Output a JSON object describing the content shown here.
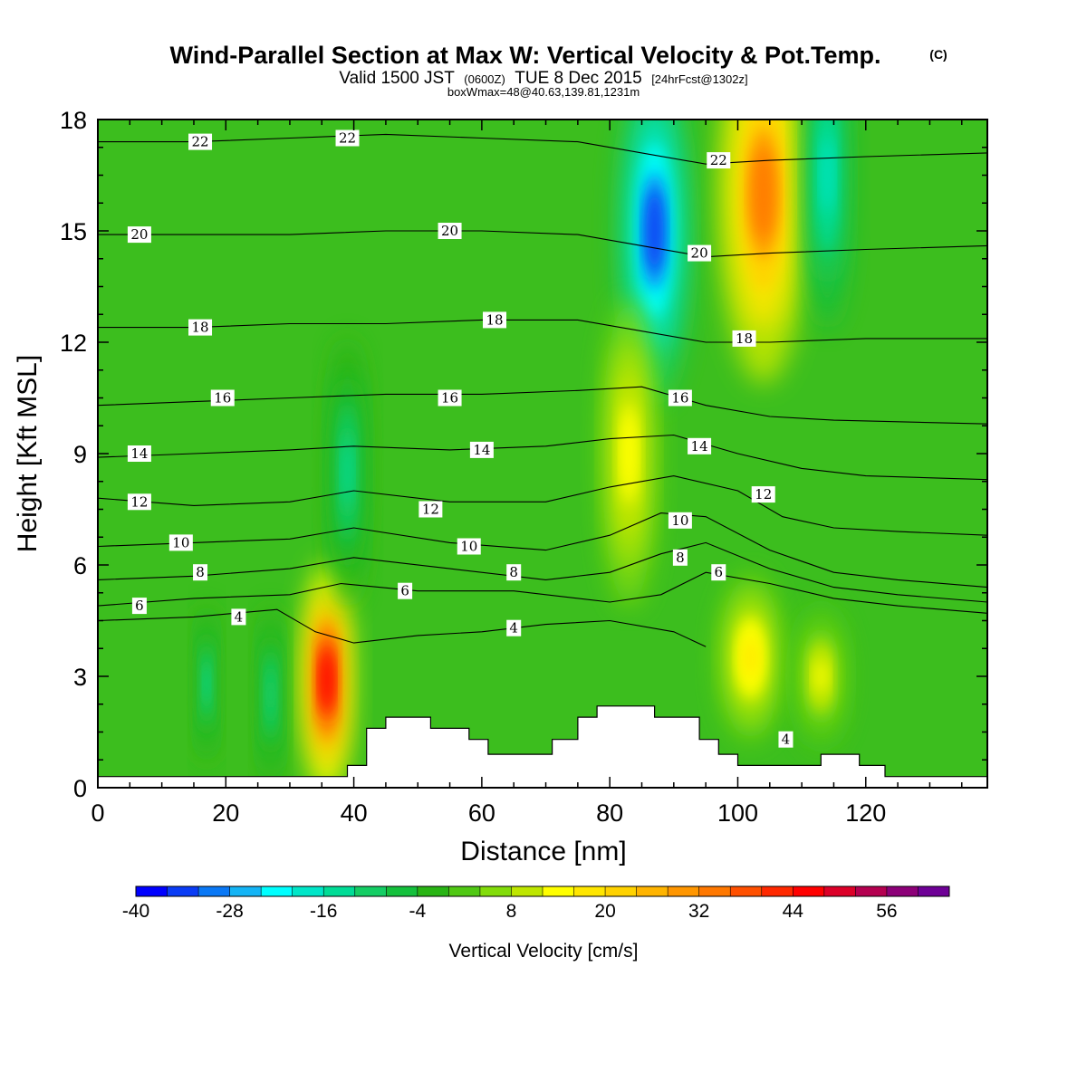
{
  "header": {
    "title": "Wind-Parallel Section at Max W: Vertical Velocity & Pot.Temp.",
    "title_mark": "(C)",
    "valid_prefix": "Valid 1500 JST",
    "valid_utc": "(0600Z)",
    "valid_date": "TUE 8 Dec 2015",
    "forecast": "[24hrFcst@1302z]",
    "box_info": "boxWmax=48@40.63,139.81,1231m"
  },
  "chart_data": {
    "type": "heatmap",
    "title": "Wind-Parallel Section at Max W: Vertical Velocity & Pot.Temp.",
    "xlabel": "Distance [nm]",
    "ylabel": "Height [Kft MSL]",
    "xlim": [
      0,
      139
    ],
    "ylim": [
      0,
      18
    ],
    "xticks": [
      0,
      20,
      40,
      60,
      80,
      100,
      120
    ],
    "yticks": [
      0,
      3,
      6,
      9,
      12,
      15,
      18
    ],
    "colorbar": {
      "label": "Vertical Velocity [cm/s]",
      "min": -40,
      "max": 60,
      "step": 4,
      "tick_values": [
        -40,
        -28,
        -16,
        -4,
        8,
        20,
        32,
        44,
        56
      ],
      "colors": [
        "#0000ff",
        "#0a3cf5",
        "#0a78f5",
        "#14b4f5",
        "#00ffff",
        "#00e6c8",
        "#00dc96",
        "#14cd64",
        "#14c03c",
        "#28b414",
        "#50c814",
        "#82dc0a",
        "#bee600",
        "#ffff00",
        "#ffe600",
        "#ffd200",
        "#ffb400",
        "#ff9600",
        "#ff7800",
        "#ff5000",
        "#ff2800",
        "#ff0000",
        "#dc0028",
        "#b40050",
        "#8c0078",
        "#6e0096"
      ]
    },
    "vertical_velocity_features": [
      {
        "x": 35.8,
        "y": 2.9,
        "w": 48,
        "note": "max updraft"
      },
      {
        "x": 87,
        "y": 15,
        "w": -34
      },
      {
        "x": 104,
        "y": 16,
        "w": 34
      },
      {
        "x": 114,
        "y": 16.5,
        "w": -18
      },
      {
        "x": 102,
        "y": 3.5,
        "w": 18
      },
      {
        "x": 113,
        "y": 3,
        "w": 14
      },
      {
        "x": 83,
        "y": 9,
        "w": 16
      },
      {
        "x": 39,
        "y": 8.5,
        "w": -14
      },
      {
        "x": 17,
        "y": 2.8,
        "w": -14
      },
      {
        "x": 27,
        "y": 2.5,
        "w": -12
      }
    ],
    "theta_contours": [
      {
        "level": 4,
        "points": [
          [
            0,
            4.5
          ],
          [
            15,
            4.6
          ],
          [
            28,
            4.8
          ],
          [
            34,
            4.2
          ],
          [
            40,
            3.9
          ],
          [
            50,
            4.1
          ],
          [
            60,
            4.2
          ],
          [
            70,
            4.4
          ],
          [
            80,
            4.5
          ],
          [
            90,
            4.2
          ],
          [
            95,
            3.8
          ]
        ]
      },
      {
        "level": 6,
        "points": [
          [
            0,
            4.9
          ],
          [
            15,
            5.1
          ],
          [
            30,
            5.2
          ],
          [
            38,
            5.5
          ],
          [
            50,
            5.3
          ],
          [
            65,
            5.3
          ],
          [
            80,
            5.0
          ],
          [
            88,
            5.2
          ],
          [
            95,
            5.8
          ],
          [
            105,
            5.5
          ],
          [
            115,
            5.1
          ],
          [
            125,
            4.9
          ],
          [
            139,
            4.7
          ]
        ]
      },
      {
        "level": 8,
        "points": [
          [
            0,
            5.6
          ],
          [
            15,
            5.7
          ],
          [
            30,
            5.9
          ],
          [
            40,
            6.2
          ],
          [
            55,
            5.9
          ],
          [
            70,
            5.6
          ],
          [
            80,
            5.8
          ],
          [
            88,
            6.3
          ],
          [
            95,
            6.6
          ],
          [
            105,
            5.9
          ],
          [
            115,
            5.4
          ],
          [
            125,
            5.2
          ],
          [
            139,
            5.0
          ]
        ]
      },
      {
        "level": 10,
        "points": [
          [
            0,
            6.5
          ],
          [
            15,
            6.6
          ],
          [
            30,
            6.7
          ],
          [
            40,
            7.0
          ],
          [
            55,
            6.6
          ],
          [
            70,
            6.4
          ],
          [
            80,
            6.8
          ],
          [
            88,
            7.4
          ],
          [
            95,
            7.3
          ],
          [
            105,
            6.4
          ],
          [
            115,
            5.8
          ],
          [
            125,
            5.6
          ],
          [
            139,
            5.4
          ]
        ]
      },
      {
        "level": 12,
        "points": [
          [
            0,
            7.8
          ],
          [
            15,
            7.6
          ],
          [
            30,
            7.7
          ],
          [
            40,
            8.0
          ],
          [
            55,
            7.7
          ],
          [
            70,
            7.7
          ],
          [
            80,
            8.1
          ],
          [
            90,
            8.4
          ],
          [
            100,
            8.0
          ],
          [
            107,
            7.3
          ],
          [
            115,
            7.0
          ],
          [
            125,
            6.9
          ],
          [
            139,
            6.8
          ]
        ]
      },
      {
        "level": 14,
        "points": [
          [
            0,
            8.9
          ],
          [
            15,
            9.0
          ],
          [
            30,
            9.1
          ],
          [
            40,
            9.2
          ],
          [
            55,
            9.1
          ],
          [
            70,
            9.2
          ],
          [
            80,
            9.4
          ],
          [
            90,
            9.5
          ],
          [
            100,
            9.0
          ],
          [
            110,
            8.6
          ],
          [
            120,
            8.4
          ],
          [
            139,
            8.3
          ]
        ]
      },
      {
        "level": 16,
        "points": [
          [
            0,
            10.3
          ],
          [
            15,
            10.4
          ],
          [
            30,
            10.5
          ],
          [
            45,
            10.6
          ],
          [
            60,
            10.6
          ],
          [
            75,
            10.7
          ],
          [
            85,
            10.8
          ],
          [
            95,
            10.3
          ],
          [
            105,
            10.0
          ],
          [
            115,
            9.9
          ],
          [
            139,
            9.8
          ]
        ]
      },
      {
        "level": 18,
        "points": [
          [
            0,
            12.4
          ],
          [
            15,
            12.4
          ],
          [
            30,
            12.5
          ],
          [
            45,
            12.5
          ],
          [
            60,
            12.6
          ],
          [
            75,
            12.6
          ],
          [
            85,
            12.3
          ],
          [
            95,
            12.0
          ],
          [
            105,
            12.0
          ],
          [
            120,
            12.1
          ],
          [
            139,
            12.1
          ]
        ]
      },
      {
        "level": 20,
        "points": [
          [
            0,
            14.9
          ],
          [
            15,
            14.9
          ],
          [
            30,
            14.9
          ],
          [
            45,
            15.0
          ],
          [
            60,
            15.0
          ],
          [
            75,
            14.9
          ],
          [
            85,
            14.6
          ],
          [
            95,
            14.3
          ],
          [
            105,
            14.4
          ],
          [
            120,
            14.5
          ],
          [
            139,
            14.6
          ]
        ]
      },
      {
        "level": 22,
        "points": [
          [
            0,
            17.4
          ],
          [
            15,
            17.4
          ],
          [
            30,
            17.5
          ],
          [
            45,
            17.6
          ],
          [
            60,
            17.5
          ],
          [
            75,
            17.4
          ],
          [
            85,
            17.1
          ],
          [
            95,
            16.8
          ],
          [
            105,
            16.9
          ],
          [
            120,
            17.0
          ],
          [
            139,
            17.1
          ]
        ]
      }
    ],
    "contour_labels": [
      {
        "text": "22",
        "x": 16,
        "y": 17.4
      },
      {
        "text": "22",
        "x": 39,
        "y": 17.5
      },
      {
        "text": "22",
        "x": 97,
        "y": 16.9
      },
      {
        "text": "20",
        "x": 6.5,
        "y": 14.9
      },
      {
        "text": "20",
        "x": 55,
        "y": 15.0
      },
      {
        "text": "20",
        "x": 94,
        "y": 14.4
      },
      {
        "text": "18",
        "x": 16,
        "y": 12.4
      },
      {
        "text": "18",
        "x": 62,
        "y": 12.6
      },
      {
        "text": "18",
        "x": 101,
        "y": 12.1
      },
      {
        "text": "16",
        "x": 19.5,
        "y": 10.5
      },
      {
        "text": "16",
        "x": 55,
        "y": 10.5
      },
      {
        "text": "16",
        "x": 91,
        "y": 10.5
      },
      {
        "text": "14",
        "x": 6.5,
        "y": 9.0
      },
      {
        "text": "14",
        "x": 60,
        "y": 9.1
      },
      {
        "text": "14",
        "x": 94,
        "y": 9.2
      },
      {
        "text": "12",
        "x": 6.5,
        "y": 7.7
      },
      {
        "text": "12",
        "x": 52,
        "y": 7.5
      },
      {
        "text": "12",
        "x": 104,
        "y": 7.9
      },
      {
        "text": "10",
        "x": 13,
        "y": 6.6
      },
      {
        "text": "10",
        "x": 58,
        "y": 6.5
      },
      {
        "text": "10",
        "x": 91,
        "y": 7.2
      },
      {
        "text": "8",
        "x": 16,
        "y": 5.8
      },
      {
        "text": "8",
        "x": 65,
        "y": 5.8
      },
      {
        "text": "8",
        "x": 91,
        "y": 6.2
      },
      {
        "text": "6",
        "x": 6.5,
        "y": 4.9
      },
      {
        "text": "6",
        "x": 48,
        "y": 5.3
      },
      {
        "text": "6",
        "x": 97,
        "y": 5.8
      },
      {
        "text": "4",
        "x": 22,
        "y": 4.6
      },
      {
        "text": "4",
        "x": 65,
        "y": 4.3
      },
      {
        "text": "4",
        "x": 107.5,
        "y": 1.3
      }
    ],
    "terrain": [
      [
        0,
        0.3
      ],
      [
        39,
        0.3
      ],
      [
        39,
        0.6
      ],
      [
        42,
        0.6
      ],
      [
        42,
        1.6
      ],
      [
        45,
        1.6
      ],
      [
        45,
        1.9
      ],
      [
        52,
        1.9
      ],
      [
        52,
        1.6
      ],
      [
        58,
        1.6
      ],
      [
        58,
        1.3
      ],
      [
        61,
        1.3
      ],
      [
        61,
        0.9
      ],
      [
        71,
        0.9
      ],
      [
        71,
        1.3
      ],
      [
        75,
        1.3
      ],
      [
        75,
        1.9
      ],
      [
        78,
        1.9
      ],
      [
        78,
        2.2
      ],
      [
        87,
        2.2
      ],
      [
        87,
        1.9
      ],
      [
        94,
        1.9
      ],
      [
        94,
        1.3
      ],
      [
        97,
        1.3
      ],
      [
        97,
        0.9
      ],
      [
        100,
        0.9
      ],
      [
        100,
        0.6
      ],
      [
        113,
        0.6
      ],
      [
        113,
        0.9
      ],
      [
        119,
        0.9
      ],
      [
        119,
        0.6
      ],
      [
        123,
        0.6
      ],
      [
        123,
        0.3
      ],
      [
        139,
        0.3
      ]
    ]
  }
}
